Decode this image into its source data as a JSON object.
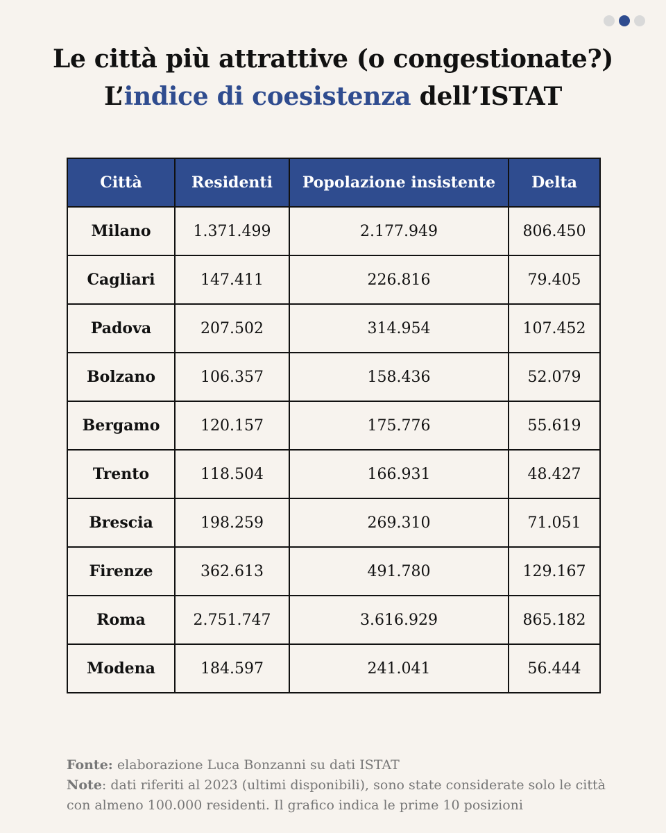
{
  "pager": {
    "count": 3,
    "active": 1
  },
  "title": {
    "line1": "Le città più attrattive (o congestionate?)",
    "line2_prefix": "L’",
    "line2_accent": "indice di coesistenza",
    "line2_suffix": " dell’ISTAT"
  },
  "colors": {
    "accent": "#2f4c8f",
    "background": "#f7f3ee",
    "text": "#111111",
    "muted": "#777777"
  },
  "chart_data": {
    "type": "table",
    "columns": [
      "Città",
      "Residenti",
      "Popolazione insistente",
      "Delta"
    ],
    "rows": [
      [
        "Milano",
        "1.371.499",
        "2.177.949",
        "806.450"
      ],
      [
        "Cagliari",
        "147.411",
        "226.816",
        "79.405"
      ],
      [
        "Padova",
        "207.502",
        "314.954",
        "107.452"
      ],
      [
        "Bolzano",
        "106.357",
        "158.436",
        "52.079"
      ],
      [
        "Bergamo",
        "120.157",
        "175.776",
        "55.619"
      ],
      [
        "Trento",
        "118.504",
        "166.931",
        "48.427"
      ],
      [
        "Brescia",
        "198.259",
        "269.310",
        "71.051"
      ],
      [
        "Firenze",
        "362.613",
        "491.780",
        "129.167"
      ],
      [
        "Roma",
        "2.751.747",
        "3.616.929",
        "865.182"
      ],
      [
        "Modena",
        "184.597",
        "241.041",
        "56.444"
      ]
    ]
  },
  "footer": {
    "source_label": "Fonte:",
    "source_text": " elaborazione Luca Bonzanni su dati ISTAT",
    "note_label": "Note",
    "note_text": ": dati riferiti al 2023 (ultimi disponibili), sono state considerate solo le città con almeno 100.000 residenti. Il grafico indica le prime 10 posizioni"
  }
}
